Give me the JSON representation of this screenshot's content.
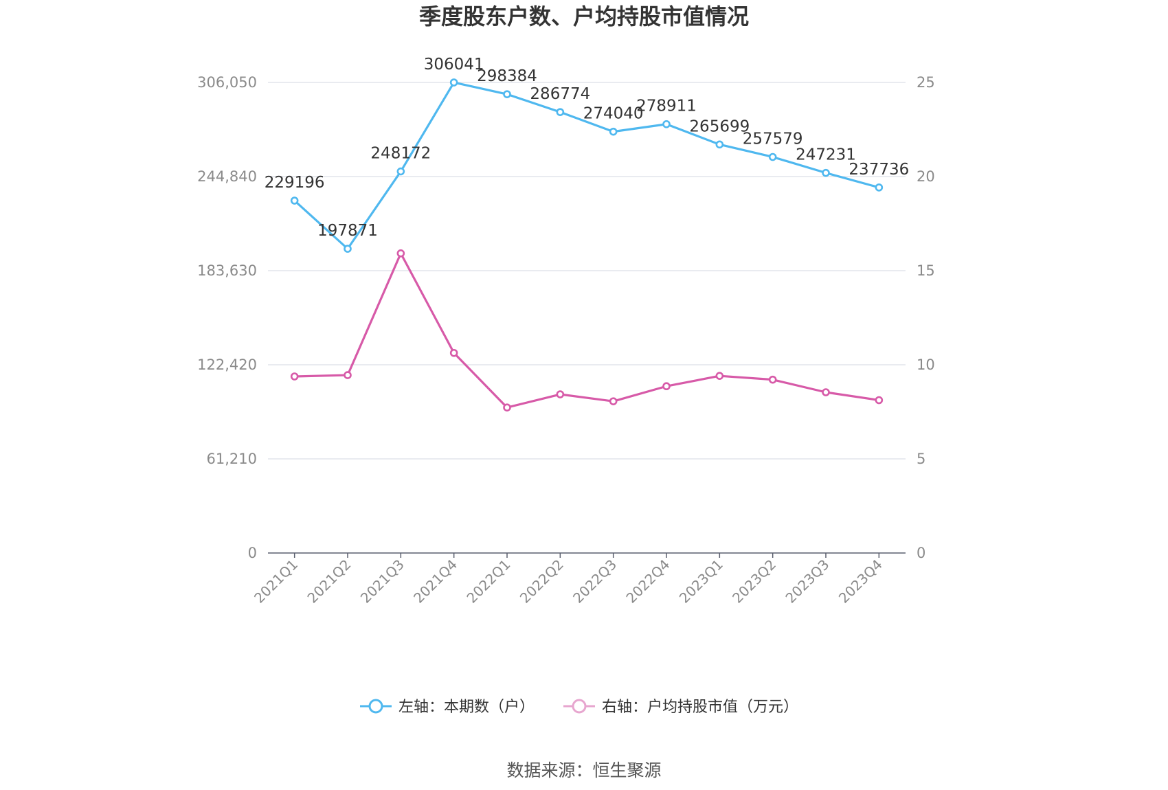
{
  "chart_data": {
    "type": "line",
    "title": "季度股东户数、户均持股市值情况",
    "categories": [
      "2021Q1",
      "2021Q2",
      "2021Q3",
      "2021Q4",
      "2022Q1",
      "2022Q2",
      "2022Q3",
      "2022Q4",
      "2023Q1",
      "2023Q2",
      "2023Q3",
      "2023Q4"
    ],
    "left_axis": {
      "min": 0,
      "max": 306050,
      "ticks": [
        "0",
        "61,210",
        "122,420",
        "183,630",
        "244,840",
        "306,050"
      ]
    },
    "right_axis": {
      "min": 0,
      "max": 25,
      "ticks": [
        "0",
        "5",
        "10",
        "15",
        "20",
        "25"
      ]
    },
    "series": [
      {
        "name": "左轴：本期数（户）",
        "axis": "left",
        "color": "#4fb8ef",
        "values": [
          229196,
          197871,
          248172,
          306041,
          298384,
          286774,
          274040,
          278911,
          265699,
          257579,
          247231,
          237736
        ],
        "labels": [
          "229196",
          "197871",
          "248172",
          "306041",
          "298384",
          "286774",
          "274040",
          "278911",
          "265699",
          "257579",
          "247231",
          "237736"
        ]
      },
      {
        "name": "右轴：户均持股市值（万元）",
        "axis": "right",
        "color": "#d75aa8",
        "legend_color": "#e7a6cf",
        "values": [
          9.38,
          9.45,
          15.92,
          10.63,
          7.73,
          8.43,
          8.06,
          8.86,
          9.41,
          9.21,
          8.54,
          8.12
        ]
      }
    ],
    "grid": true,
    "legend_position": "bottom",
    "source": "数据来源：恒生聚源"
  }
}
